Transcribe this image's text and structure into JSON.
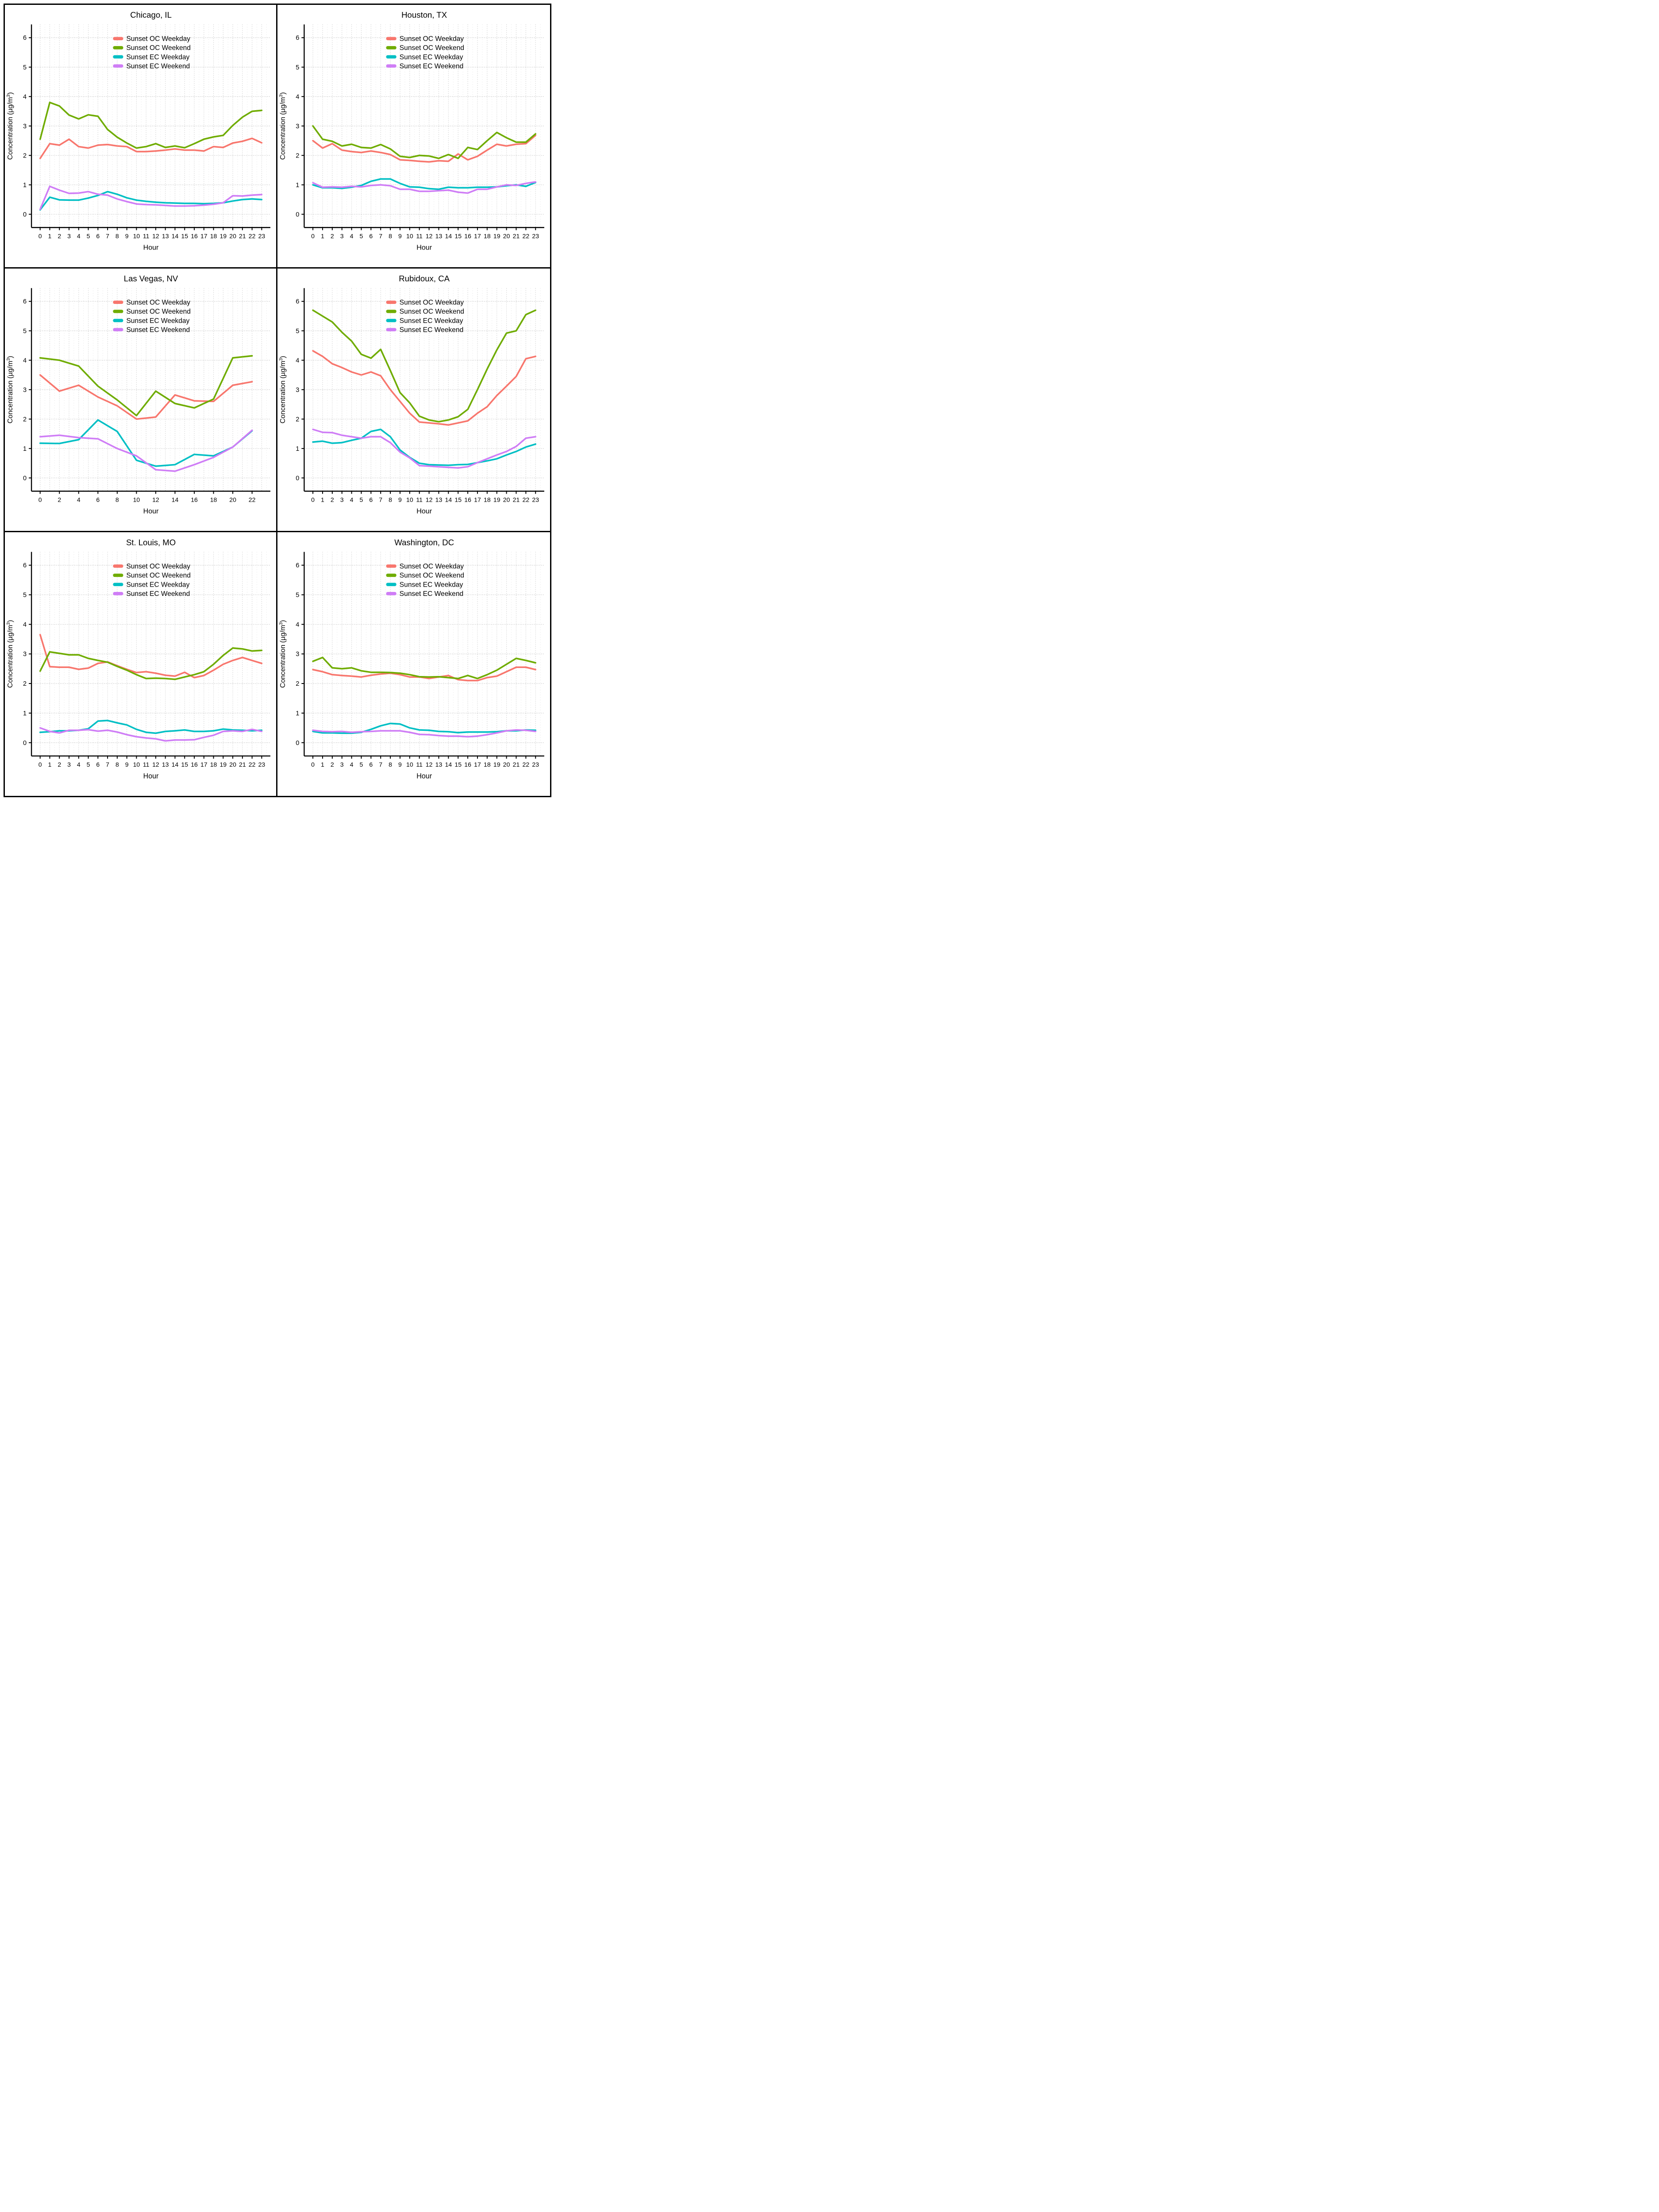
{
  "figure": {
    "border_color": "#000000",
    "background": "#ffffff",
    "grid_major_color": "#c3c3c3",
    "grid_minor_color": "#d6d6d6",
    "axis_color": "#000000"
  },
  "colors": {
    "oc_weekday": "#F8766D",
    "oc_weekend": "#6FAC00",
    "ec_weekday": "#00BFC4",
    "ec_weekend": "#CF7DF6"
  },
  "legend_labels": [
    "Sunset OC Weekday",
    "Sunset OC Weekend",
    "Sunset EC Weekday",
    "Sunset EC Weekend"
  ],
  "axis": {
    "x_label": "Hour",
    "y_label_main": "Concentration (µg/m",
    "y_label_sup": "3",
    "y_label_close": ")",
    "y_ticks": [
      0,
      1,
      2,
      3,
      4,
      5,
      6
    ],
    "ylim": [
      0,
      6
    ]
  },
  "chart_data": [
    {
      "type": "line",
      "title": "Chicago, IL",
      "xlabel": "Hour",
      "ylabel": "Concentration (µg/m3)",
      "ylim": [
        0,
        6
      ],
      "x": [
        0,
        1,
        2,
        3,
        4,
        5,
        6,
        7,
        8,
        9,
        10,
        11,
        12,
        13,
        14,
        15,
        16,
        17,
        18,
        19,
        20,
        21,
        22,
        23
      ],
      "x_ticks": [
        0,
        1,
        2,
        3,
        4,
        5,
        6,
        7,
        8,
        9,
        10,
        11,
        12,
        13,
        14,
        15,
        16,
        17,
        18,
        19,
        20,
        21,
        22,
        23
      ],
      "series": [
        {
          "name": "Sunset OC Weekday",
          "color_key": "oc_weekday",
          "values": [
            1.9,
            2.4,
            2.35,
            2.55,
            2.3,
            2.25,
            2.35,
            2.37,
            2.32,
            2.3,
            2.13,
            2.13,
            2.15,
            2.18,
            2.22,
            2.18,
            2.18,
            2.15,
            2.3,
            2.27,
            2.42,
            2.48,
            2.58,
            2.43
          ]
        },
        {
          "name": "Sunset OC Weekend",
          "color_key": "oc_weekend",
          "values": [
            2.55,
            3.8,
            3.68,
            3.37,
            3.24,
            3.38,
            3.33,
            2.88,
            2.62,
            2.42,
            2.25,
            2.3,
            2.4,
            2.27,
            2.32,
            2.26,
            2.4,
            2.55,
            2.63,
            2.68,
            3.02,
            3.3,
            3.5,
            3.53
          ]
        },
        {
          "name": "Sunset EC Weekday",
          "color_key": "ec_weekday",
          "values": [
            0.15,
            0.58,
            0.49,
            0.48,
            0.48,
            0.55,
            0.64,
            0.77,
            0.68,
            0.56,
            0.48,
            0.44,
            0.41,
            0.39,
            0.38,
            0.37,
            0.37,
            0.36,
            0.37,
            0.39,
            0.45,
            0.5,
            0.52,
            0.5
          ]
        },
        {
          "name": "Sunset EC Weekend",
          "color_key": "ec_weekend",
          "values": [
            0.17,
            0.95,
            0.82,
            0.71,
            0.72,
            0.77,
            0.68,
            0.65,
            0.52,
            0.43,
            0.35,
            0.33,
            0.32,
            0.3,
            0.28,
            0.28,
            0.29,
            0.31,
            0.34,
            0.39,
            0.63,
            0.62,
            0.65,
            0.67
          ]
        }
      ]
    },
    {
      "type": "line",
      "title": "Houston, TX",
      "xlabel": "Hour",
      "ylabel": "Concentration (µg/m3)",
      "ylim": [
        0,
        6
      ],
      "x": [
        0,
        1,
        2,
        3,
        4,
        5,
        6,
        7,
        8,
        9,
        10,
        11,
        12,
        13,
        14,
        15,
        16,
        17,
        18,
        19,
        20,
        21,
        22,
        23
      ],
      "x_ticks": [
        0,
        1,
        2,
        3,
        4,
        5,
        6,
        7,
        8,
        9,
        10,
        11,
        12,
        13,
        14,
        15,
        16,
        17,
        18,
        19,
        20,
        21,
        22,
        23
      ],
      "series": [
        {
          "name": "Sunset OC Weekday",
          "color_key": "oc_weekday",
          "values": [
            2.5,
            2.25,
            2.4,
            2.18,
            2.13,
            2.1,
            2.15,
            2.1,
            2.03,
            1.85,
            1.83,
            1.8,
            1.78,
            1.82,
            1.8,
            2.05,
            1.85,
            1.97,
            2.18,
            2.38,
            2.32,
            2.38,
            2.4,
            2.68
          ]
        },
        {
          "name": "Sunset OC Weekend",
          "color_key": "oc_weekend",
          "values": [
            3.0,
            2.55,
            2.48,
            2.32,
            2.38,
            2.27,
            2.25,
            2.37,
            2.22,
            1.97,
            1.93,
            2.0,
            1.98,
            1.9,
            2.03,
            1.9,
            2.27,
            2.2,
            2.5,
            2.78,
            2.6,
            2.45,
            2.45,
            2.73
          ]
        },
        {
          "name": "Sunset EC Weekday",
          "color_key": "ec_weekday",
          "values": [
            1.0,
            0.9,
            0.9,
            0.88,
            0.92,
            0.98,
            1.12,
            1.2,
            1.2,
            1.05,
            0.93,
            0.92,
            0.87,
            0.85,
            0.92,
            0.9,
            0.9,
            0.92,
            0.92,
            0.93,
            0.97,
            1.0,
            0.95,
            1.08
          ]
        },
        {
          "name": "Sunset EC Weekend",
          "color_key": "ec_weekend",
          "values": [
            1.07,
            0.92,
            0.93,
            0.92,
            0.95,
            0.93,
            0.98,
            1.0,
            0.97,
            0.85,
            0.85,
            0.78,
            0.78,
            0.8,
            0.82,
            0.75,
            0.72,
            0.85,
            0.85,
            0.93,
            1.0,
            0.98,
            1.05,
            1.1
          ]
        }
      ]
    },
    {
      "type": "line",
      "title": "Las Vegas, NV",
      "xlabel": "Hour",
      "ylabel": "Concentration (µg/m3)",
      "ylim": [
        0,
        6
      ],
      "x": [
        0,
        2,
        4,
        6,
        8,
        10,
        12,
        14,
        16,
        18,
        20,
        22
      ],
      "x_ticks": [
        0,
        2,
        4,
        6,
        8,
        10,
        12,
        14,
        16,
        18,
        20,
        22
      ],
      "series": [
        {
          "name": "Sunset OC Weekday",
          "color_key": "oc_weekday",
          "values": [
            3.5,
            2.95,
            3.15,
            2.75,
            2.45,
            2.0,
            2.07,
            2.82,
            2.62,
            2.6,
            3.15,
            3.27
          ]
        },
        {
          "name": "Sunset OC Weekend",
          "color_key": "oc_weekend",
          "values": [
            4.08,
            4.0,
            3.8,
            3.12,
            2.65,
            2.12,
            2.95,
            2.53,
            2.38,
            2.68,
            4.08,
            4.15
          ]
        },
        {
          "name": "Sunset EC Weekday",
          "color_key": "ec_weekday",
          "values": [
            1.18,
            1.17,
            1.3,
            1.97,
            1.58,
            0.6,
            0.4,
            0.45,
            0.8,
            0.75,
            1.05,
            1.6
          ]
        },
        {
          "name": "Sunset EC Weekend",
          "color_key": "ec_weekend",
          "values": [
            1.4,
            1.45,
            1.37,
            1.33,
            1.0,
            0.75,
            0.28,
            0.23,
            0.45,
            0.7,
            1.05,
            1.62
          ]
        }
      ]
    },
    {
      "type": "line",
      "title": "Rubidoux, CA",
      "xlabel": "Hour",
      "ylabel": "Concentration (µg/m3)",
      "ylim": [
        0,
        6
      ],
      "x": [
        0,
        1,
        2,
        3,
        4,
        5,
        6,
        7,
        8,
        9,
        10,
        11,
        12,
        13,
        14,
        15,
        16,
        17,
        18,
        19,
        20,
        21,
        22,
        23
      ],
      "x_ticks": [
        0,
        1,
        2,
        3,
        4,
        5,
        6,
        7,
        8,
        9,
        10,
        11,
        12,
        13,
        14,
        15,
        16,
        17,
        18,
        19,
        20,
        21,
        22,
        23
      ],
      "series": [
        {
          "name": "Sunset OC Weekday",
          "color_key": "oc_weekday",
          "values": [
            4.32,
            4.13,
            3.88,
            3.75,
            3.6,
            3.5,
            3.6,
            3.47,
            3.0,
            2.6,
            2.2,
            1.9,
            1.87,
            1.84,
            1.8,
            1.87,
            1.94,
            2.2,
            2.42,
            2.8,
            3.12,
            3.45,
            4.05,
            4.13
          ]
        },
        {
          "name": "Sunset OC Weekend",
          "color_key": "oc_weekend",
          "values": [
            5.7,
            5.5,
            5.3,
            4.95,
            4.65,
            4.2,
            4.07,
            4.37,
            3.65,
            2.9,
            2.55,
            2.1,
            1.97,
            1.91,
            1.97,
            2.08,
            2.33,
            3.0,
            3.7,
            4.35,
            4.92,
            5.0,
            5.55,
            5.7
          ]
        },
        {
          "name": "Sunset EC Weekday",
          "color_key": "ec_weekday",
          "values": [
            1.22,
            1.25,
            1.18,
            1.2,
            1.28,
            1.35,
            1.58,
            1.65,
            1.4,
            0.95,
            0.7,
            0.5,
            0.45,
            0.44,
            0.43,
            0.45,
            0.46,
            0.52,
            0.58,
            0.65,
            0.78,
            0.9,
            1.05,
            1.15
          ]
        },
        {
          "name": "Sunset EC Weekend",
          "color_key": "ec_weekend",
          "values": [
            1.65,
            1.55,
            1.54,
            1.45,
            1.4,
            1.35,
            1.4,
            1.4,
            1.2,
            0.88,
            0.68,
            0.42,
            0.4,
            0.38,
            0.36,
            0.34,
            0.38,
            0.52,
            0.65,
            0.78,
            0.9,
            1.07,
            1.35,
            1.4
          ]
        }
      ]
    },
    {
      "type": "line",
      "title": "St. Louis, MO",
      "xlabel": "Hour",
      "ylabel": "Concentration (µg/m3)",
      "ylim": [
        0,
        6
      ],
      "x": [
        0,
        1,
        2,
        3,
        4,
        5,
        6,
        7,
        8,
        9,
        10,
        11,
        12,
        13,
        14,
        15,
        16,
        17,
        18,
        19,
        20,
        21,
        22,
        23
      ],
      "x_ticks": [
        0,
        1,
        2,
        3,
        4,
        5,
        6,
        7,
        8,
        9,
        10,
        11,
        12,
        13,
        14,
        15,
        16,
        17,
        18,
        19,
        20,
        21,
        22,
        23
      ],
      "series": [
        {
          "name": "Sunset OC Weekday",
          "color_key": "oc_weekday",
          "values": [
            3.65,
            2.57,
            2.55,
            2.55,
            2.48,
            2.52,
            2.68,
            2.73,
            2.6,
            2.48,
            2.37,
            2.4,
            2.35,
            2.28,
            2.25,
            2.38,
            2.2,
            2.27,
            2.45,
            2.65,
            2.78,
            2.88,
            2.78,
            2.68
          ]
        },
        {
          "name": "Sunset OC Weekend",
          "color_key": "oc_weekend",
          "values": [
            2.42,
            3.07,
            3.02,
            2.97,
            2.97,
            2.85,
            2.78,
            2.72,
            2.58,
            2.45,
            2.3,
            2.17,
            2.18,
            2.17,
            2.14,
            2.22,
            2.3,
            2.4,
            2.65,
            2.95,
            3.2,
            3.17,
            3.1,
            3.12
          ]
        },
        {
          "name": "Sunset EC Weekday",
          "color_key": "ec_weekday",
          "values": [
            0.35,
            0.37,
            0.4,
            0.4,
            0.42,
            0.47,
            0.73,
            0.75,
            0.67,
            0.6,
            0.45,
            0.35,
            0.32,
            0.38,
            0.4,
            0.43,
            0.38,
            0.38,
            0.4,
            0.46,
            0.43,
            0.42,
            0.4,
            0.42
          ]
        },
        {
          "name": "Sunset EC Weekend",
          "color_key": "ec_weekend",
          "values": [
            0.5,
            0.38,
            0.33,
            0.42,
            0.42,
            0.44,
            0.39,
            0.42,
            0.36,
            0.27,
            0.2,
            0.16,
            0.13,
            0.06,
            0.09,
            0.09,
            0.1,
            0.18,
            0.25,
            0.38,
            0.4,
            0.38,
            0.45,
            0.38
          ]
        }
      ]
    },
    {
      "type": "line",
      "title": "Washington, DC",
      "xlabel": "Hour",
      "ylabel": "Concentration (µg/m3)",
      "ylim": [
        0,
        6
      ],
      "x": [
        0,
        1,
        2,
        3,
        4,
        5,
        6,
        7,
        8,
        9,
        10,
        11,
        12,
        13,
        14,
        15,
        16,
        17,
        18,
        19,
        20,
        21,
        22,
        23
      ],
      "x_ticks": [
        0,
        1,
        2,
        3,
        4,
        5,
        6,
        7,
        8,
        9,
        10,
        11,
        12,
        13,
        14,
        15,
        16,
        17,
        18,
        19,
        20,
        21,
        22,
        23
      ],
      "series": [
        {
          "name": "Sunset OC Weekday",
          "color_key": "oc_weekday",
          "values": [
            2.47,
            2.4,
            2.3,
            2.27,
            2.25,
            2.22,
            2.28,
            2.32,
            2.35,
            2.3,
            2.22,
            2.22,
            2.17,
            2.22,
            2.27,
            2.13,
            2.1,
            2.1,
            2.2,
            2.25,
            2.4,
            2.55,
            2.55,
            2.47
          ]
        },
        {
          "name": "Sunset OC Weekend",
          "color_key": "oc_weekend",
          "values": [
            2.75,
            2.88,
            2.53,
            2.5,
            2.53,
            2.43,
            2.38,
            2.38,
            2.37,
            2.35,
            2.3,
            2.23,
            2.22,
            2.23,
            2.2,
            2.17,
            2.27,
            2.17,
            2.3,
            2.45,
            2.65,
            2.85,
            2.78,
            2.7
          ]
        },
        {
          "name": "Sunset EC Weekday",
          "color_key": "ec_weekday",
          "values": [
            0.38,
            0.33,
            0.33,
            0.32,
            0.32,
            0.35,
            0.45,
            0.57,
            0.65,
            0.63,
            0.5,
            0.43,
            0.42,
            0.38,
            0.37,
            0.34,
            0.36,
            0.36,
            0.36,
            0.37,
            0.4,
            0.4,
            0.43,
            0.42
          ]
        },
        {
          "name": "Sunset EC Weekend",
          "color_key": "ec_weekend",
          "values": [
            0.42,
            0.38,
            0.37,
            0.38,
            0.35,
            0.37,
            0.38,
            0.4,
            0.4,
            0.4,
            0.35,
            0.28,
            0.27,
            0.24,
            0.22,
            0.22,
            0.2,
            0.22,
            0.27,
            0.33,
            0.4,
            0.43,
            0.42,
            0.38
          ]
        }
      ]
    }
  ]
}
